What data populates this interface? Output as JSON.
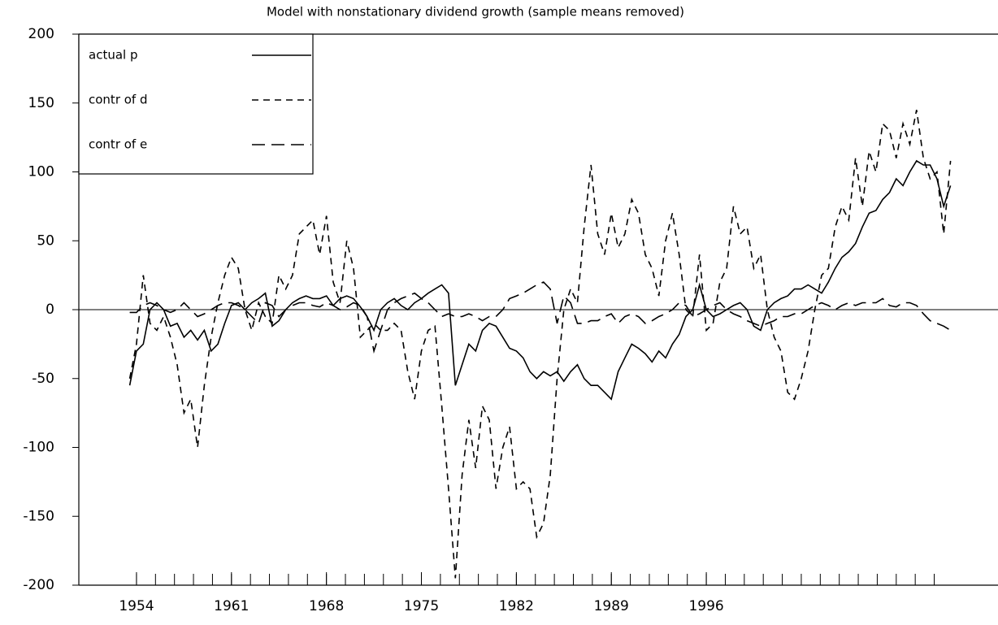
{
  "chart_data": {
    "type": "line",
    "title": "Model with nonstationary dividend growth (sample means removed)",
    "x": [
      1953.5,
      1954,
      1954.5,
      1955,
      1955.5,
      1956,
      1956.5,
      1957,
      1957.5,
      1958,
      1958.5,
      1959,
      1959.5,
      1960,
      1960.5,
      1961,
      1961.5,
      1962,
      1962.5,
      1963,
      1963.5,
      1964,
      1964.5,
      1965,
      1965.5,
      1966,
      1966.5,
      1967,
      1967.5,
      1968,
      1968.5,
      1969,
      1969.5,
      1970,
      1970.5,
      1971,
      1971.5,
      1972,
      1972.5,
      1973,
      1973.5,
      1974,
      1974.5,
      1975,
      1975.5,
      1976,
      1976.5,
      1977,
      1977.5,
      1978,
      1978.5,
      1979,
      1979.5,
      1980,
      1980.5,
      1981,
      1981.5,
      1982,
      1982.5,
      1983,
      1983.5,
      1984,
      1984.5,
      1985,
      1985.5,
      1986,
      1986.5,
      1987,
      1987.5,
      1988,
      1988.5,
      1989,
      1989.5,
      1990,
      1990.5,
      1991,
      1991.5,
      1992,
      1992.5,
      1993,
      1993.5,
      1994,
      1994.5,
      1995,
      1995.5,
      1996,
      1996.5,
      1997,
      1997.5,
      1998,
      1998.5,
      1999,
      1999.5,
      2000,
      2000.5,
      2001,
      2001.5,
      2002,
      2002.5,
      2003,
      2003.5,
      2004,
      2004.5,
      2005,
      2005.5,
      2006,
      2006.5,
      2007,
      2007.5,
      2008,
      2008.5,
      2009,
      2009.5,
      2010,
      2010.5,
      2011,
      2011.5,
      2012,
      2012.5,
      2013,
      2013.5,
      2014
    ],
    "series": [
      {
        "name": "actual p",
        "color": "#000000",
        "dash": "solid",
        "values": [
          -55,
          -30,
          -25,
          0,
          5,
          0,
          -12,
          -10,
          -20,
          -15,
          -22,
          -15,
          -30,
          -25,
          -10,
          3,
          5,
          0,
          5,
          8,
          12,
          -12,
          -8,
          0,
          5,
          8,
          10,
          8,
          8,
          10,
          3,
          8,
          10,
          8,
          2,
          -5,
          -15,
          0,
          5,
          8,
          3,
          0,
          5,
          8,
          12,
          15,
          18,
          12,
          -55,
          -40,
          -25,
          -30,
          -15,
          -10,
          -12,
          -20,
          -28,
          -30,
          -35,
          -45,
          -50,
          -45,
          -48,
          -45,
          -52,
          -45,
          -40,
          -50,
          -55,
          -55,
          -60,
          -65,
          -45,
          -35,
          -25,
          -28,
          -32,
          -38,
          -30,
          -35,
          -25,
          -18,
          -5,
          0,
          18,
          0,
          -5,
          -3,
          0,
          3,
          5,
          0,
          -12,
          -15,
          0,
          5,
          8,
          10,
          15,
          15,
          18,
          15,
          12,
          20,
          30,
          38,
          42,
          48,
          60,
          70,
          72,
          80,
          85,
          95,
          90,
          100,
          108,
          105,
          105,
          95,
          75,
          90
        ]
      },
      {
        "name": "contr of d",
        "color": "#000000",
        "dash": "short",
        "values": [
          -50,
          -25,
          25,
          -10,
          -15,
          -5,
          -20,
          -40,
          -75,
          -65,
          -100,
          -55,
          -20,
          5,
          25,
          38,
          30,
          0,
          -15,
          5,
          -5,
          -10,
          25,
          15,
          25,
          55,
          60,
          65,
          40,
          68,
          20,
          5,
          50,
          30,
          -20,
          -15,
          -10,
          -15,
          -15,
          -10,
          -15,
          -45,
          -65,
          -30,
          -15,
          -12,
          -70,
          -130,
          -195,
          -120,
          -80,
          -115,
          -70,
          -80,
          -130,
          -100,
          -85,
          -130,
          -125,
          -130,
          -165,
          -155,
          -120,
          -50,
          0,
          15,
          5,
          60,
          105,
          55,
          40,
          70,
          45,
          55,
          80,
          70,
          40,
          30,
          10,
          50,
          70,
          40,
          0,
          -5,
          40,
          -15,
          -10,
          20,
          30,
          75,
          55,
          60,
          30,
          40,
          0,
          -20,
          -30,
          -60,
          -65,
          -50,
          -30,
          0,
          25,
          30,
          60,
          75,
          65,
          110,
          75,
          115,
          100,
          135,
          130,
          110,
          135,
          120,
          145,
          110,
          95,
          100,
          55,
          108
        ]
      },
      {
        "name": "contr of e",
        "color": "#000000",
        "dash": "long",
        "values": [
          -2,
          -2,
          3,
          5,
          3,
          0,
          -2,
          0,
          5,
          0,
          -5,
          -3,
          0,
          3,
          5,
          5,
          3,
          0,
          -5,
          -10,
          5,
          3,
          -5,
          0,
          3,
          5,
          5,
          3,
          2,
          5,
          3,
          0,
          2,
          5,
          3,
          -5,
          -30,
          -15,
          0,
          5,
          8,
          10,
          12,
          8,
          5,
          0,
          -5,
          -3,
          -5,
          -5,
          -3,
          -5,
          -8,
          -5,
          -5,
          0,
          8,
          10,
          12,
          15,
          18,
          20,
          15,
          -10,
          10,
          5,
          -10,
          -10,
          -8,
          -8,
          -5,
          -3,
          -10,
          -5,
          -3,
          -5,
          -10,
          -8,
          -5,
          -3,
          0,
          5,
          3,
          -5,
          -3,
          0,
          3,
          5,
          0,
          -3,
          -5,
          -8,
          -10,
          -12,
          -10,
          -8,
          -5,
          -5,
          -3,
          -3,
          0,
          3,
          5,
          3,
          0,
          3,
          5,
          3,
          5,
          5,
          5,
          8,
          3,
          2,
          5,
          5,
          3,
          -3,
          -8,
          -10,
          -12,
          -15
        ]
      }
    ],
    "xlim": [
      1949.75,
      2017.5
    ],
    "xticks": [
      1954,
      1961,
      1968,
      1975,
      1982,
      1989,
      1996
    ],
    "xminorticks": [
      1954,
      1955.4,
      1956.8,
      1958.2,
      1959.6,
      1961,
      1962.4,
      1963.8,
      1965.2,
      1966.6,
      1968,
      1969.4,
      1970.8,
      1972.2,
      1973.6,
      1975,
      1976.4,
      1977.8,
      1979.2,
      1980.6,
      1982,
      1983.4,
      1984.8,
      1986.2,
      1987.6,
      1989,
      1990.4,
      1991.8,
      1993.2,
      1994.6,
      1996,
      1997.4,
      1998.8,
      2000.2,
      2001.6,
      2003,
      2004.4,
      2005.8,
      2007.2,
      2008.6,
      2010,
      2011.4,
      2012.8
    ],
    "ylim": [
      -200,
      200
    ],
    "yticks": [
      -200,
      -150,
      -100,
      -50,
      0,
      50,
      100,
      150,
      200
    ],
    "zero_line": true,
    "legend": "upper left"
  }
}
